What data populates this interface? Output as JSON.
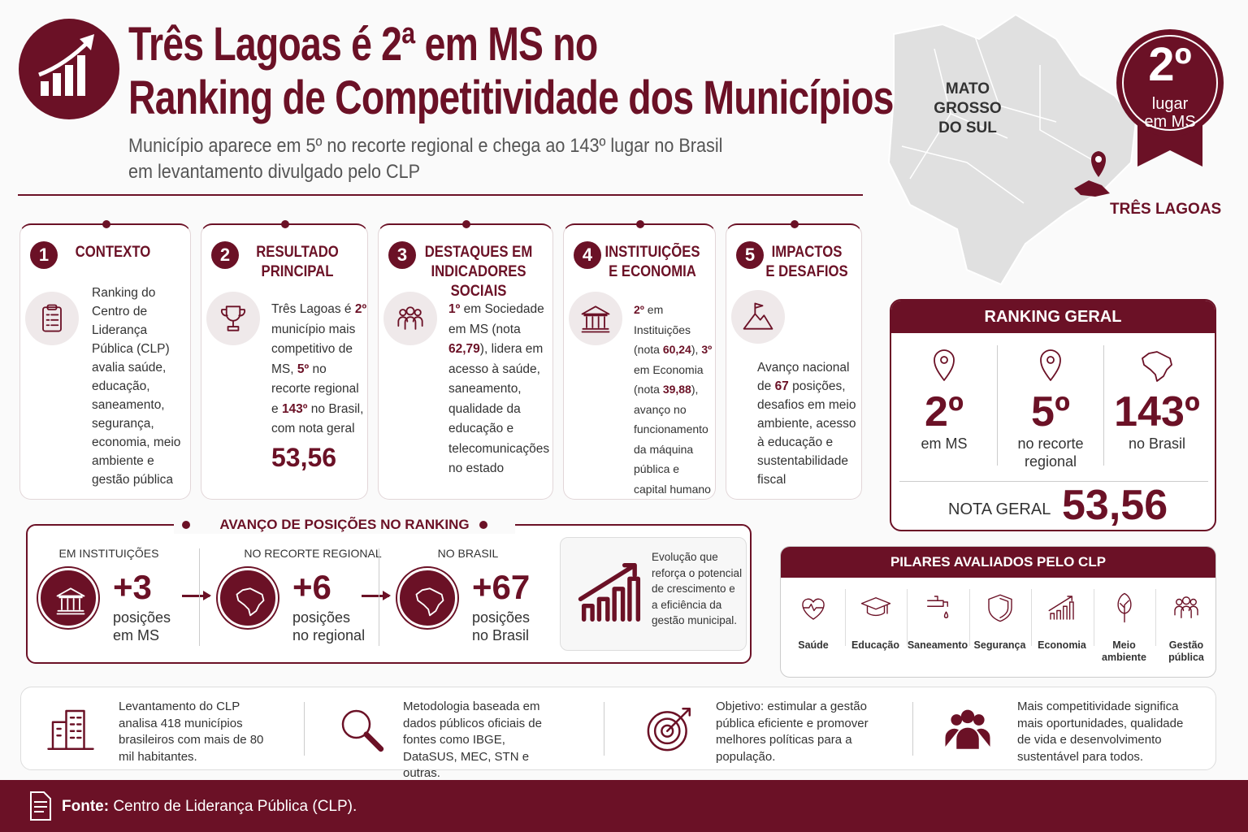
{
  "header": {
    "title_line1": "Três Lagoas é 2ª em MS no",
    "title_line2": "Ranking de Competitividade dos Municípios",
    "subtitle_line1": "Município aparece em 5º no recorte regional e chega ao 143º lugar no Brasil",
    "subtitle_line2": "em levantamento divulgado pelo CLP"
  },
  "map": {
    "state_label": [
      "MATO GROSSO",
      "DO SUL"
    ],
    "city_label": "TRÊS LAGOAS"
  },
  "badge": {
    "rank": "2º",
    "label": [
      "lugar",
      "em MS"
    ]
  },
  "cards": [
    {
      "number": "1",
      "title": [
        "CONTEXTO"
      ],
      "text": [
        {
          "t": "Ranking do Centro de Liderança Pública (CLP) avalia saúde, educação, saneamento, segurança, economia, meio ambiente e gestão pública"
        }
      ]
    },
    {
      "number": "2",
      "title": [
        "RESULTADO",
        "PRINCIPAL"
      ],
      "text": [
        {
          "t": "Três Lagoas é "
        },
        {
          "t": "2º",
          "b": true
        },
        {
          "t": " município mais competitivo de MS, "
        },
        {
          "t": "5º",
          "b": true
        },
        {
          "t": " no recorte regional e "
        },
        {
          "t": "143º",
          "b": true
        },
        {
          "t": " no Brasil, com nota geral"
        }
      ],
      "value": "53,56"
    },
    {
      "number": "3",
      "title": [
        "DESTAQUES EM",
        "INDICADORES SOCIAIS"
      ],
      "text": [
        {
          "t": "1º",
          "b": true
        },
        {
          "t": " em Sociedade em MS (nota "
        },
        {
          "t": "62,79",
          "b": true
        },
        {
          "t": "), lidera em acesso à saúde, saneamento, qualidade da educação e telecomunicações no estado"
        }
      ]
    },
    {
      "number": "4",
      "title": [
        "INSTITUIÇÕES",
        "E ECONOMIA"
      ],
      "text": [
        {
          "t": "2º",
          "b": true
        },
        {
          "t": " em Instituições (nota "
        },
        {
          "t": "60,24",
          "b": true
        },
        {
          "t": "), "
        },
        {
          "t": "3º",
          "b": true
        },
        {
          "t": " em Economia (nota "
        },
        {
          "t": "39,88",
          "b": true
        },
        {
          "t": "), avanço no funcionamento da máquina pública e capital humano"
        }
      ]
    },
    {
      "number": "5",
      "title": [
        "IMPACTOS",
        "E DESAFIOS"
      ],
      "text": [
        {
          "t": "Avanço nacional de "
        },
        {
          "t": "67",
          "b": true
        },
        {
          "t": " posições, desafios em meio ambiente, acesso à educação e sustentabilidade fiscal"
        }
      ]
    }
  ],
  "ranking": {
    "title": "RANKING GERAL",
    "items": [
      {
        "value": "2º",
        "label": [
          "em MS"
        ]
      },
      {
        "value": "5º",
        "label": [
          "no recorte",
          "regional"
        ]
      },
      {
        "value": "143º",
        "label": [
          "no Brasil"
        ]
      }
    ],
    "score_label": "NOTA GERAL",
    "score_value": "53,56"
  },
  "advance": {
    "title": "AVANÇO DE POSIÇÕES NO RANKING",
    "items": [
      {
        "heading": "EM INSTITUIÇÕES",
        "value": "+3",
        "label": [
          "posições",
          "em MS"
        ]
      },
      {
        "heading": "NO RECORTE REGIONAL",
        "value": "+6",
        "label": [
          "posições",
          "no regional"
        ]
      },
      {
        "heading": "NO BRASIL",
        "value": "+67",
        "label": [
          "posições",
          "no Brasil"
        ]
      }
    ],
    "note": "Evolução que reforça o potencial de crescimento e a eficiência da gestão municipal."
  },
  "pillars": {
    "title": "PILARES AVALIADOS PELO CLP",
    "items": [
      "Saúde",
      "Educação",
      "Saneamento",
      "Segurança",
      "Economia",
      "Meio ambiente",
      "Gestão pública"
    ]
  },
  "facts": [
    "Levantamento do CLP analisa 418 municípios brasileiros com mais de 80 mil habitantes.",
    "Metodologia baseada em dados públicos oficiais de fontes como IBGE, DataSUS, MEC, STN e outras.",
    "Objetivo: estimular a gestão pública eficiente e promover melhores políticas para a população.",
    "Mais competitividade significa mais oportunidades, qualidade de vida e desenvolvimento sustentável para todos."
  ],
  "source": {
    "label": "Fonte:",
    "text": " Centro de Liderança Pública (CLP)."
  }
}
